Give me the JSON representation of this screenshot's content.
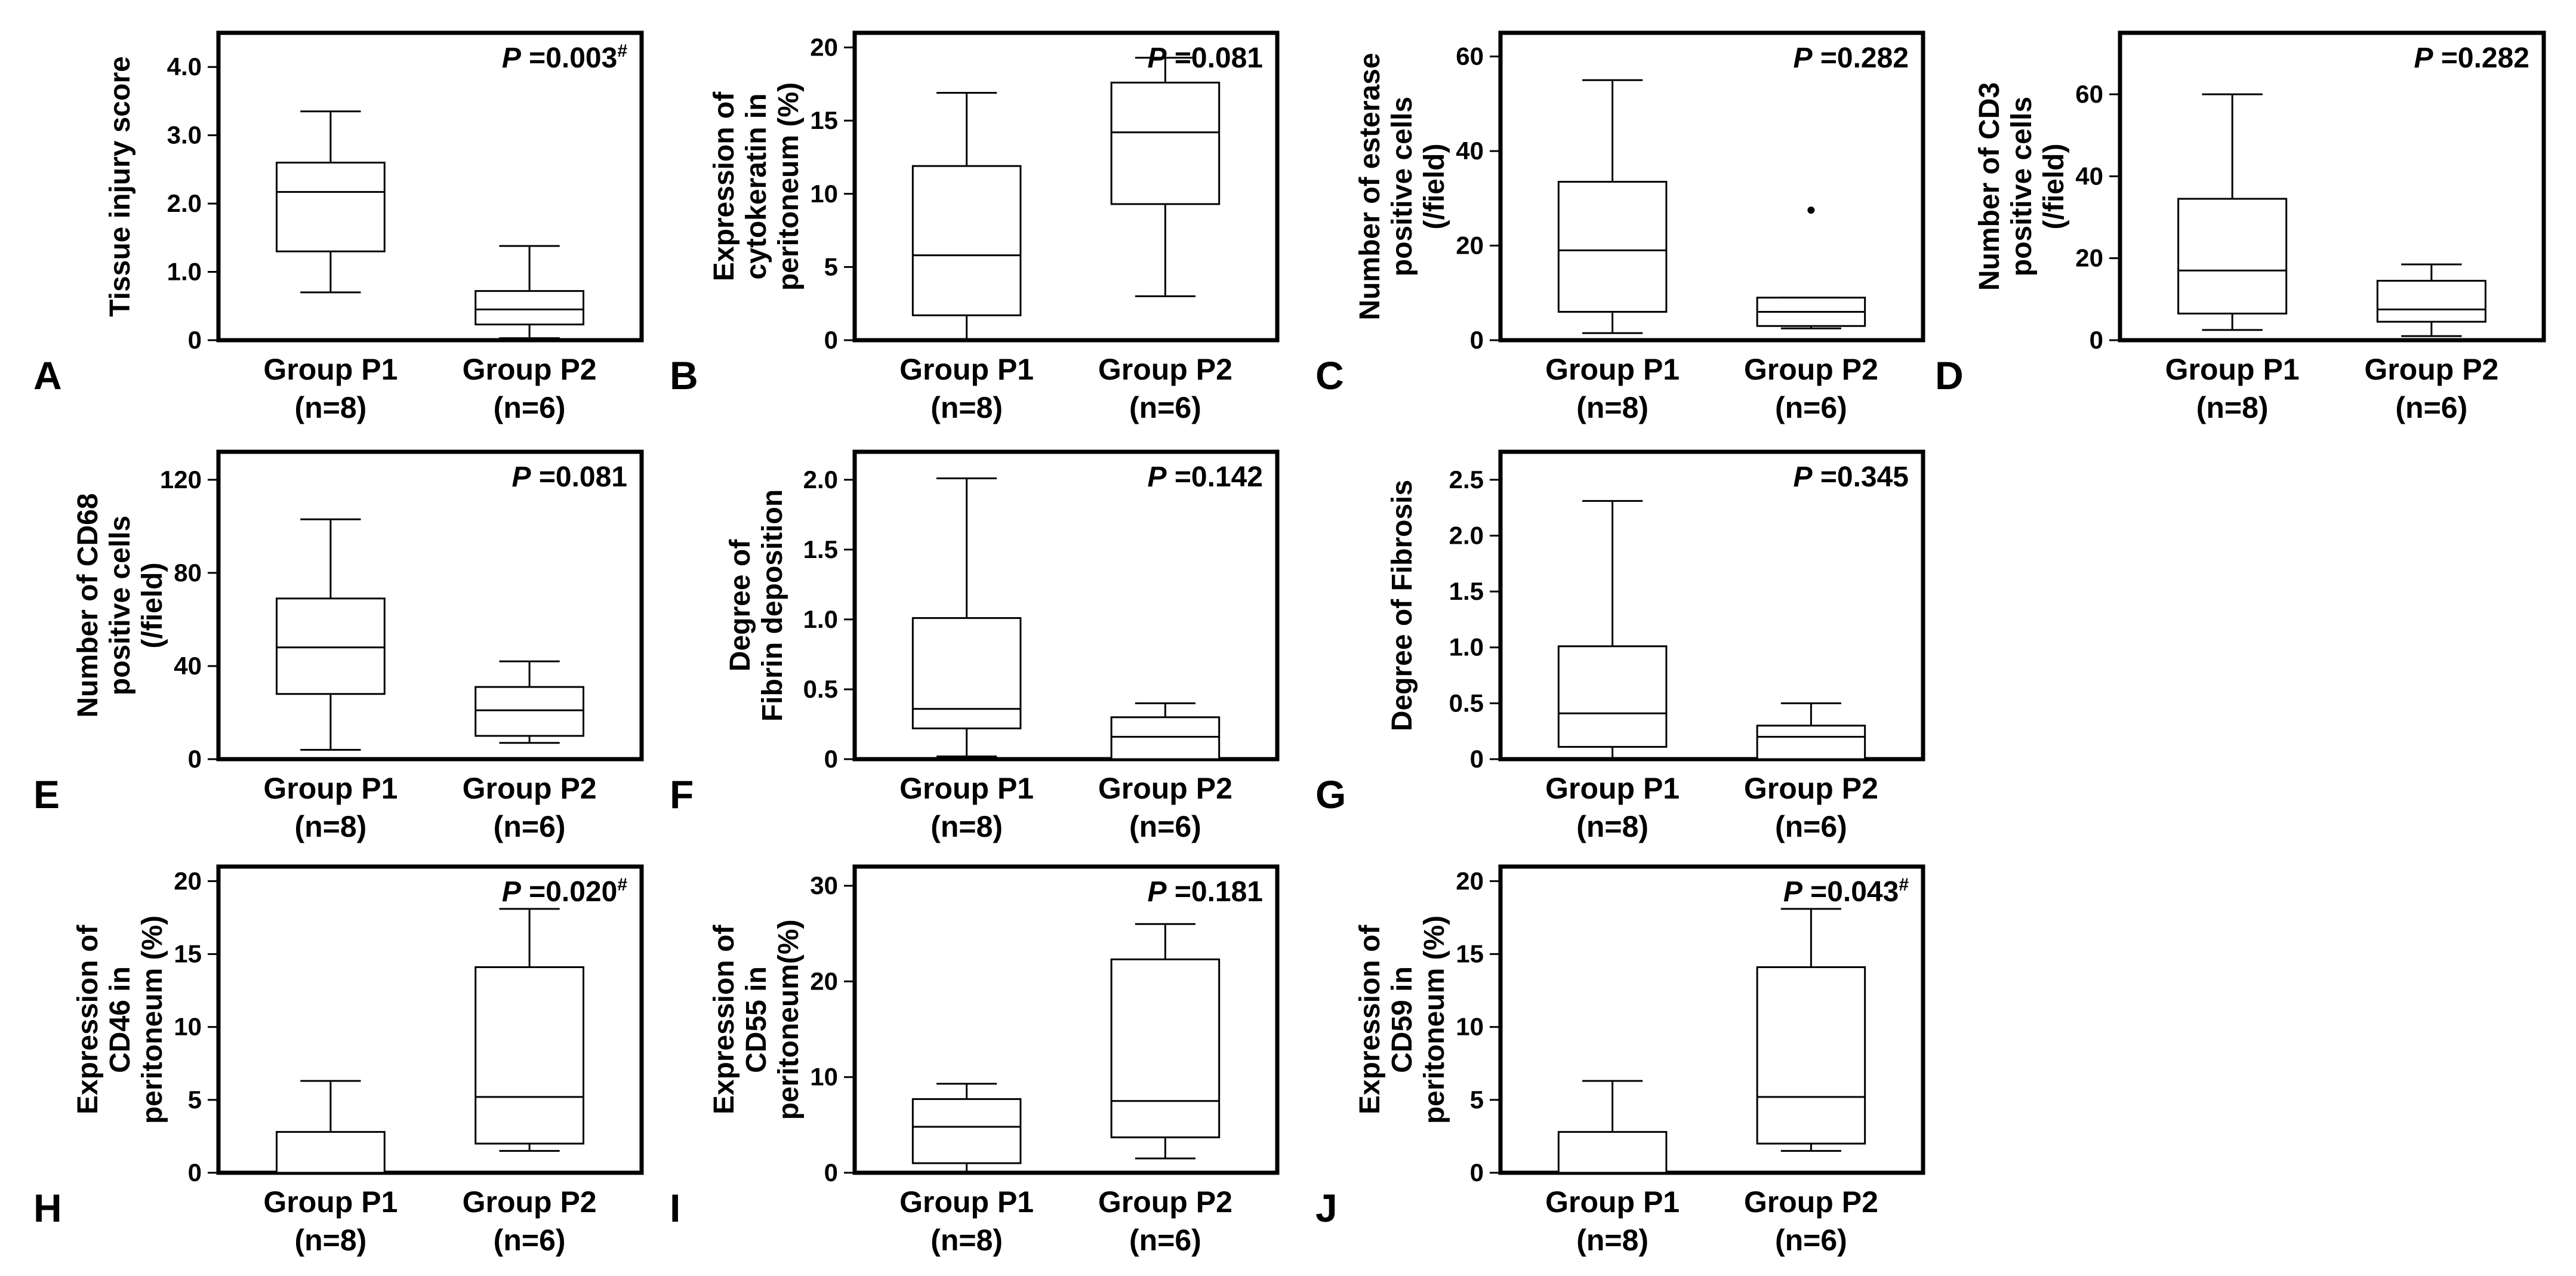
{
  "figure": {
    "background": "#ffffff",
    "line_color": "#000000"
  },
  "chart_data": [
    {
      "panel_label": "A",
      "type": "box",
      "ylabel": [
        "Tissue injury score"
      ],
      "p_prefix": "P",
      "p_text": " =0.003",
      "p_mark": "#",
      "ylim": [
        0,
        4.5
      ],
      "yticks": [
        0,
        1,
        2,
        3,
        4
      ],
      "ytick_labels": [
        "0",
        "1.0",
        "2.0",
        "3.0",
        "4.0"
      ],
      "groups": [
        {
          "label": "Group P1",
          "n": "(n=8)",
          "min": 0.7,
          "q1": 1.3,
          "median": 2.17,
          "q3": 2.6,
          "max": 3.35,
          "outliers": []
        },
        {
          "label": "Group P2",
          "n": "(n=6)",
          "min": 0.03,
          "q1": 0.23,
          "median": 0.45,
          "q3": 0.72,
          "max": 1.38,
          "outliers": []
        }
      ]
    },
    {
      "panel_label": "B",
      "type": "box",
      "ylabel": [
        "Expression of",
        "cytokeratin in",
        "peritoneum (%)"
      ],
      "p_prefix": "P",
      "p_text": " =0.081",
      "p_mark": "",
      "ylim": [
        0,
        21
      ],
      "yticks": [
        0,
        5,
        10,
        15,
        20
      ],
      "ytick_labels": [
        "0",
        "5",
        "10",
        "15",
        "20"
      ],
      "groups": [
        {
          "label": "Group P1",
          "n": "(n=8)",
          "min": 0.0,
          "q1": 1.7,
          "median": 5.8,
          "q3": 11.9,
          "max": 16.9,
          "outliers": []
        },
        {
          "label": "Group P2",
          "n": "(n=6)",
          "min": 3.0,
          "q1": 9.3,
          "median": 14.2,
          "q3": 17.6,
          "max": 19.3,
          "outliers": []
        }
      ]
    },
    {
      "panel_label": "C",
      "type": "box",
      "ylabel": [
        "Number of esterase",
        "positive cells",
        "(/field)"
      ],
      "p_prefix": "P",
      "p_text": " =0.282",
      "p_mark": "",
      "ylim": [
        0,
        65
      ],
      "yticks": [
        0,
        20,
        40,
        60
      ],
      "ytick_labels": [
        "0",
        "20",
        "40",
        "60"
      ],
      "groups": [
        {
          "label": "Group P1",
          "n": "(n=8)",
          "min": 1.5,
          "q1": 6.0,
          "median": 19.0,
          "q3": 33.5,
          "max": 55.0,
          "outliers": []
        },
        {
          "label": "Group P2",
          "n": "(n=6)",
          "min": 2.5,
          "q1": 3.0,
          "median": 6.0,
          "q3": 9.0,
          "max": 9.0,
          "outliers": [
            27.5
          ]
        }
      ]
    },
    {
      "panel_label": "D",
      "type": "box",
      "ylabel": [
        "Number of CD3",
        "positive cells",
        "(/field)"
      ],
      "p_prefix": "P",
      "p_text": " =0.282",
      "p_mark": "",
      "ylim": [
        0,
        75
      ],
      "yticks": [
        0,
        20,
        40,
        60
      ],
      "ytick_labels": [
        "0",
        "20",
        "40",
        "60"
      ],
      "groups": [
        {
          "label": "Group P1",
          "n": "(n=8)",
          "min": 2.5,
          "q1": 6.5,
          "median": 17.0,
          "q3": 34.5,
          "max": 60.0,
          "outliers": []
        },
        {
          "label": "Group P2",
          "n": "(n=6)",
          "min": 1.0,
          "q1": 4.5,
          "median": 7.5,
          "q3": 14.5,
          "max": 18.5,
          "outliers": []
        }
      ]
    },
    {
      "panel_label": "E",
      "type": "box",
      "ylabel": [
        "Number of CD68",
        "positive cells",
        "(/field)"
      ],
      "p_prefix": "P",
      "p_text": " =0.081",
      "p_mark": "",
      "ylim": [
        0,
        132
      ],
      "yticks": [
        0,
        40,
        80,
        120
      ],
      "ytick_labels": [
        "0",
        "40",
        "80",
        "120"
      ],
      "groups": [
        {
          "label": "Group P1",
          "n": "(n=8)",
          "min": 4.0,
          "q1": 28.0,
          "median": 48.0,
          "q3": 69.0,
          "max": 103.0,
          "outliers": []
        },
        {
          "label": "Group P2",
          "n": "(n=6)",
          "min": 7.0,
          "q1": 10.0,
          "median": 21.0,
          "q3": 31.0,
          "max": 42.0,
          "outliers": []
        }
      ]
    },
    {
      "panel_label": "F",
      "type": "box",
      "ylabel": [
        "Degree of",
        "Fibrin deposition"
      ],
      "p_prefix": "P",
      "p_text": " =0.142",
      "p_mark": "",
      "ylim": [
        0,
        2.2
      ],
      "yticks": [
        0,
        0.5,
        1.0,
        1.5,
        2.0
      ],
      "ytick_labels": [
        "0",
        "0.5",
        "1.0",
        "1.5",
        "2.0"
      ],
      "groups": [
        {
          "label": "Group P1",
          "n": "(n=8)",
          "min": 0.02,
          "q1": 0.22,
          "median": 0.36,
          "q3": 1.01,
          "max": 2.01,
          "outliers": []
        },
        {
          "label": "Group P2",
          "n": "(n=6)",
          "min": 0.0,
          "q1": 0.0,
          "median": 0.16,
          "q3": 0.3,
          "max": 0.4,
          "outliers": []
        }
      ]
    },
    {
      "panel_label": "G",
      "type": "box",
      "ylabel": [
        "Degree of Fibrosis"
      ],
      "p_prefix": "P",
      "p_text": " =0.345",
      "p_mark": "",
      "ylim": [
        0,
        2.75
      ],
      "yticks": [
        0,
        0.5,
        1.0,
        1.5,
        2.0,
        2.5
      ],
      "ytick_labels": [
        "0",
        "0.5",
        "1.0",
        "1.5",
        "2.0",
        "2.5"
      ],
      "groups": [
        {
          "label": "Group P1",
          "n": "(n=8)",
          "min": 0.01,
          "q1": 0.11,
          "median": 0.41,
          "q3": 1.01,
          "max": 2.31,
          "outliers": []
        },
        {
          "label": "Group P2",
          "n": "(n=6)",
          "min": 0.0,
          "q1": 0.0,
          "median": 0.2,
          "q3": 0.3,
          "max": 0.5,
          "outliers": []
        }
      ]
    },
    {
      "panel_label": "H",
      "type": "box",
      "ylabel": [
        "Expression of",
        "CD46 in",
        "peritoneum (%)"
      ],
      "p_prefix": "P",
      "p_text": " =0.020",
      "p_mark": "#",
      "ylim": [
        0,
        21
      ],
      "yticks": [
        0,
        5,
        10,
        15,
        20
      ],
      "ytick_labels": [
        "0",
        "5",
        "10",
        "15",
        "20"
      ],
      "groups": [
        {
          "label": "Group P1",
          "n": "(n=8)",
          "min": 0.0,
          "q1": 0.0,
          "median": 0.0,
          "q3": 2.8,
          "max": 6.3,
          "outliers": []
        },
        {
          "label": "Group P2",
          "n": "(n=6)",
          "min": 1.5,
          "q1": 2.0,
          "median": 5.2,
          "q3": 14.1,
          "max": 18.1,
          "outliers": []
        }
      ]
    },
    {
      "panel_label": "I",
      "type": "box",
      "ylabel": [
        "Expression of",
        "CD55 in",
        "peritoneum(%)"
      ],
      "p_prefix": "P",
      "p_text": " =0.181",
      "p_mark": "",
      "ylim": [
        0,
        32
      ],
      "yticks": [
        0,
        10,
        20,
        30
      ],
      "ytick_labels": [
        "0",
        "10",
        "20",
        "30"
      ],
      "groups": [
        {
          "label": "Group P1",
          "n": "(n=8)",
          "min": 0.0,
          "q1": 1.0,
          "median": 4.8,
          "q3": 7.7,
          "max": 9.3,
          "outliers": []
        },
        {
          "label": "Group P2",
          "n": "(n=6)",
          "min": 1.5,
          "q1": 3.7,
          "median": 7.5,
          "q3": 22.3,
          "max": 26.0,
          "outliers": []
        }
      ]
    },
    {
      "panel_label": "J",
      "type": "box",
      "ylabel": [
        "Expression of",
        "CD59 in",
        "peritoneum (%)"
      ],
      "p_prefix": "P",
      "p_text": " =0.043",
      "p_mark": "#",
      "ylim": [
        0,
        21
      ],
      "yticks": [
        0,
        5,
        10,
        15,
        20
      ],
      "ytick_labels": [
        "0",
        "5",
        "10",
        "15",
        "20"
      ],
      "groups": [
        {
          "label": "Group P1",
          "n": "(n=8)",
          "min": 0.0,
          "q1": 0.0,
          "median": 0.0,
          "q3": 2.8,
          "max": 6.3,
          "outliers": []
        },
        {
          "label": "Group P2",
          "n": "(n=6)",
          "min": 1.5,
          "q1": 2.0,
          "median": 5.2,
          "q3": 14.1,
          "max": 18.1,
          "outliers": []
        }
      ]
    }
  ]
}
